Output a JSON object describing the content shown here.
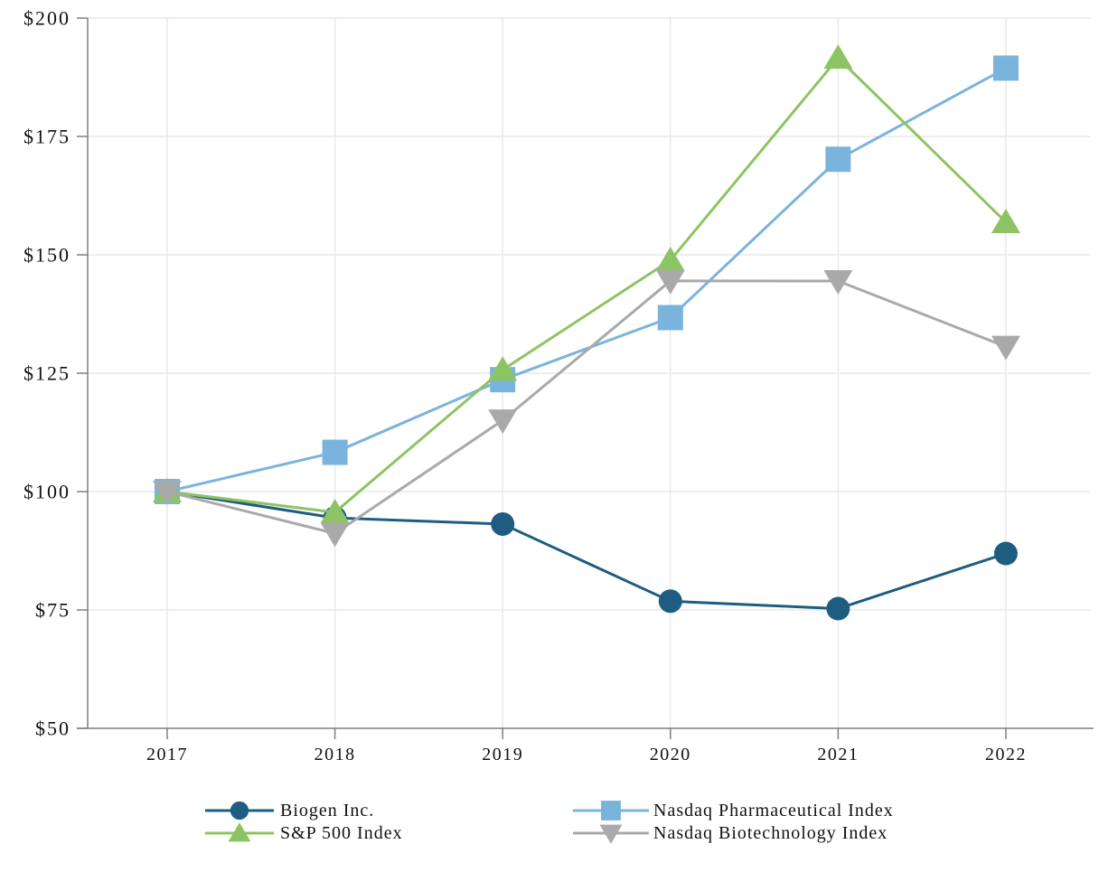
{
  "chart_data": {
    "type": "line",
    "title": "",
    "xlabel": "",
    "ylabel": "",
    "categories": [
      "2017",
      "2018",
      "2019",
      "2020",
      "2021",
      "2022"
    ],
    "ylim": [
      50,
      200
    ],
    "y_ticks": [
      50,
      75,
      100,
      125,
      150,
      175,
      200
    ],
    "y_tick_labels": [
      "$50",
      "$75",
      "$100",
      "$125",
      "$150",
      "$175",
      "$200"
    ],
    "grid": true,
    "legend_position": "bottom",
    "series": [
      {
        "name": "Biogen Inc.",
        "marker": "circle",
        "color": "#1e5d80",
        "values": [
          100.0,
          94.45,
          93.14,
          76.85,
          75.28,
          86.92
        ]
      },
      {
        "name": "Nasdaq Pharmaceutical Index",
        "marker": "square",
        "color": "#7ab4dd",
        "values": [
          100.0,
          108.29,
          123.63,
          136.74,
          170.18,
          189.43
        ]
      },
      {
        "name": "S&P 500 Index",
        "marker": "triangle-up",
        "color": "#8dc463",
        "values": [
          100.0,
          95.62,
          125.72,
          148.85,
          191.58,
          156.88
        ]
      },
      {
        "name": "Nasdaq Biotechnology Index",
        "marker": "triangle-down",
        "color": "#a9a9a9",
        "values": [
          100.0,
          91.15,
          115.05,
          144.5,
          144.46,
          130.61
        ]
      }
    ],
    "legend": {
      "columns": [
        [
          "Biogen Inc.",
          "S&P 500 Index"
        ],
        [
          "Nasdaq Pharmaceutical Index",
          "Nasdaq Biotechnology Index"
        ]
      ]
    },
    "colors": {
      "axis": "#7f7f7f",
      "grid": "#e9e9e9",
      "text": "#111111",
      "background": "#ffffff"
    }
  }
}
